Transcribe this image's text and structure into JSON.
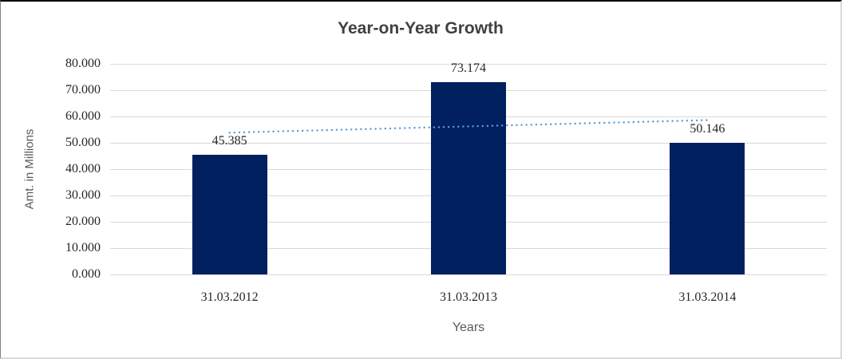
{
  "chart_data": {
    "type": "bar",
    "title": "Year-on-Year Growth",
    "xlabel": "Years",
    "ylabel": "Amt. in Millions",
    "categories": [
      "31.03.2012",
      "31.03.2013",
      "31.03.2014"
    ],
    "values": [
      45.385,
      73.174,
      50.146
    ],
    "data_labels": [
      "45.385",
      "73.174",
      "50.146"
    ],
    "ylim": [
      0,
      80
    ],
    "ytick_step": 10,
    "ytick_labels": [
      "0.000",
      "10.000",
      "20.000",
      "30.000",
      "40.000",
      "50.000",
      "60.000",
      "70.000",
      "80.000"
    ],
    "grid": true,
    "legend": "none",
    "trendline": {
      "type": "linear",
      "style": "dotted",
      "color": "#5B9BD5"
    },
    "colors": {
      "bar": "#002060",
      "gridline": "#d9d9d9",
      "title_text": "#404040",
      "axis_text": "#262626",
      "axis_title_text": "#595959",
      "frame_top_border": "#000000",
      "frame_side_border": "#d9d9d9"
    }
  }
}
